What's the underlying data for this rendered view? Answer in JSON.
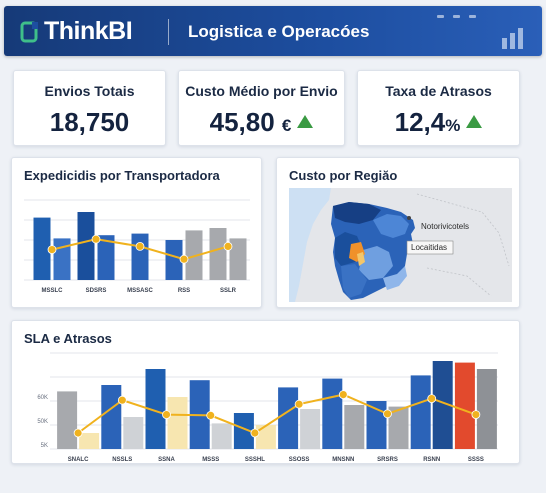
{
  "header": {
    "brand": "ThinkBI",
    "title": "Logistica e Operacóes"
  },
  "kpis": [
    {
      "label": "Envios Totais",
      "value": "18,750",
      "unit": ""
    },
    {
      "label": "Custo Médio por Envio",
      "value": "45,80",
      "unit": "€"
    },
    {
      "label": "Taxa de Atrasos",
      "value": "12,4",
      "unit": "%"
    }
  ],
  "panels": {
    "carrier": {
      "title": "Expedicidis por Transportadora"
    },
    "region": {
      "title": "Custo por Regiăo",
      "map_label_1": "Notorivicotels",
      "map_label_2": "Locaitidas"
    },
    "sla": {
      "title": "SLA e Atrasos"
    }
  },
  "colors": {
    "blue_dark": "#1f4e93",
    "blue_mid": "#2b63b8",
    "blue_light": "#4d86d6",
    "gray_bar": "#a7a9ad",
    "gold_line": "#f0b21e",
    "cream_bar": "#f7e6b0",
    "red_bar": "#e24a2d",
    "green_arrow": "#3a9a43"
  },
  "chart_data": [
    {
      "type": "bar",
      "title": "Expedicidis por Transportadora",
      "categories": [
        "MSSLC",
        "SDSRS",
        "MSSASC",
        "RSS",
        "SSLR"
      ],
      "series": [],
      "bars_per_category": [
        [
          0.78,
          0.52
        ],
        [
          0.85,
          0.56
        ],
        [
          0.58,
          null
        ],
        [
          0.5,
          0.62
        ],
        [
          0.65,
          0.52
        ]
      ],
      "bar_colors": [
        [
          "#1f5fb0",
          "#3a72c4"
        ],
        [
          "#1a4f9c",
          "#2b63b8"
        ],
        [
          "#2b63b8",
          null
        ],
        [
          "#2b63b8",
          "#a7a9ad"
        ],
        [
          "#a7a9ad",
          "#a7a9ad"
        ]
      ],
      "line": [
        0.38,
        0.51,
        0.42,
        0.26,
        0.42
      ],
      "ylim": [
        0,
        1
      ]
    },
    {
      "type": "bar",
      "title": "SLA e Atrasos",
      "categories": [
        "SNALC",
        "NSSLS",
        "SSNA",
        "MSSS",
        "SSSHL",
        "SSOSS",
        "MNSNN",
        "SRSRS",
        "RSNN",
        "SSSS"
      ],
      "yticks": [
        "",
        "60K",
        "50K",
        "5K"
      ],
      "bars_per_category": [
        [
          0.72,
          0.2
        ],
        [
          0.8,
          0.4
        ],
        [
          1.0,
          0.65
        ],
        [
          0.86,
          0.32
        ],
        [
          0.45,
          0.3
        ],
        [
          0.77,
          0.5
        ],
        [
          0.88,
          0.55
        ],
        [
          0.6,
          0.53
        ],
        [
          0.92,
          1.1
        ],
        [
          1.08,
          1.0
        ]
      ],
      "bar_colors": [
        [
          "#a7a9ad",
          "#f7e6b0"
        ],
        [
          "#2b63b8",
          "#cfd2d6"
        ],
        [
          "#1f5fb0",
          "#f7e6b0"
        ],
        [
          "#2b63b8",
          "#cfd2d6"
        ],
        [
          "#1f5fb0",
          "#f7e6b0"
        ],
        [
          "#2b63b8",
          "#cfd2d6"
        ],
        [
          "#2b63b8",
          "#a7a9ad"
        ],
        [
          "#2b63b8",
          "#a7a9ad"
        ],
        [
          "#2b63b8",
          "#1f4e93"
        ],
        [
          "#e24a2d",
          "#8e9196"
        ]
      ],
      "line": [
        0.2,
        0.61,
        0.43,
        0.42,
        0.2,
        0.56,
        0.68,
        0.44,
        0.63,
        0.43
      ],
      "ylim": [
        0,
        1.2
      ]
    }
  ]
}
